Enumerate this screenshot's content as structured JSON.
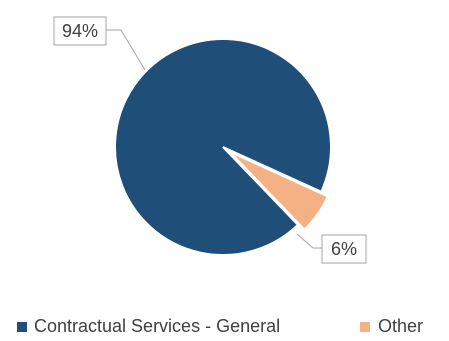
{
  "chart_data": {
    "type": "pie",
    "title": "",
    "categories": [
      "Contractual Services - General",
      "Other"
    ],
    "values": [
      94,
      6
    ],
    "labels": [
      "94%",
      "6%"
    ],
    "colors": [
      "#1f4e79",
      "#f4b183"
    ],
    "legend_position": "bottom",
    "exploded": [
      "Other"
    ]
  }
}
